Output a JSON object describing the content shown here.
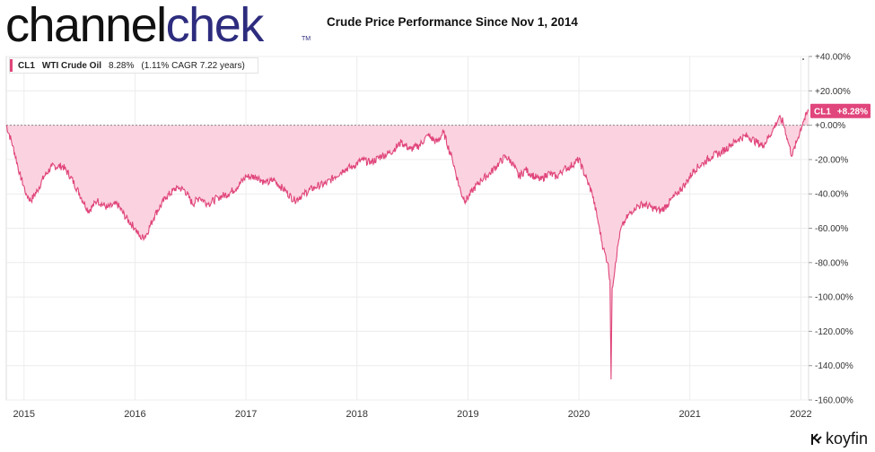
{
  "header": {
    "logo_part1": "channel",
    "logo_part2": "chek",
    "logo_tm": "TM",
    "title": "Crude Price Performance Since Nov 1, 2014"
  },
  "legend": {
    "ticker": "CL1",
    "name": "WTI Crude Oil",
    "value": "8.28%",
    "detail": "(1.11% CAGR 7.22 years)"
  },
  "last_value_badge": {
    "ticker": "CL1",
    "value": "+8.28%"
  },
  "brand": {
    "name": "koyfin"
  },
  "colors": {
    "line": "#e0457b",
    "fill": "#fbd3e0",
    "badge": "#e0457b",
    "logo_dark": "#111111",
    "logo_blue": "#2d2c7e"
  },
  "chart_data": {
    "type": "area",
    "title": "Crude Price Performance Since Nov 1, 2014",
    "ylabel": "",
    "xlabel": "",
    "ylim": [
      -160,
      40
    ],
    "xlim": [
      2014.84,
      2022.07
    ],
    "grid": true,
    "baseline": 0,
    "y_ticks": [
      "+40.00%",
      "+20.00%",
      "+0.00%",
      "-20.00%",
      "-40.00%",
      "-60.00%",
      "-80.00%",
      "-100.00%",
      "-120.00%",
      "-140.00%",
      "-160.00%"
    ],
    "x_ticks": [
      "2015",
      "2016",
      "2017",
      "2018",
      "2019",
      "2020",
      "2021",
      "2022"
    ],
    "series": [
      {
        "name": "WTI Crude Oil",
        "points": [
          [
            2014.84,
            0
          ],
          [
            2014.9,
            -12
          ],
          [
            2014.96,
            -28
          ],
          [
            2015.02,
            -40
          ],
          [
            2015.06,
            -44
          ],
          [
            2015.12,
            -38
          ],
          [
            2015.18,
            -30
          ],
          [
            2015.25,
            -24
          ],
          [
            2015.35,
            -24
          ],
          [
            2015.42,
            -30
          ],
          [
            2015.5,
            -40
          ],
          [
            2015.58,
            -50
          ],
          [
            2015.66,
            -44
          ],
          [
            2015.75,
            -48
          ],
          [
            2015.84,
            -46
          ],
          [
            2015.92,
            -54
          ],
          [
            2016.0,
            -60
          ],
          [
            2016.05,
            -66
          ],
          [
            2016.1,
            -64
          ],
          [
            2016.18,
            -52
          ],
          [
            2016.28,
            -42
          ],
          [
            2016.38,
            -36
          ],
          [
            2016.45,
            -38
          ],
          [
            2016.52,
            -46
          ],
          [
            2016.58,
            -42
          ],
          [
            2016.66,
            -46
          ],
          [
            2016.75,
            -42
          ],
          [
            2016.84,
            -40
          ],
          [
            2016.92,
            -36
          ],
          [
            2017.0,
            -30
          ],
          [
            2017.1,
            -30
          ],
          [
            2017.18,
            -34
          ],
          [
            2017.25,
            -32
          ],
          [
            2017.35,
            -38
          ],
          [
            2017.44,
            -44
          ],
          [
            2017.52,
            -40
          ],
          [
            2017.62,
            -36
          ],
          [
            2017.72,
            -34
          ],
          [
            2017.8,
            -30
          ],
          [
            2017.88,
            -26
          ],
          [
            2017.96,
            -24
          ],
          [
            2018.05,
            -20
          ],
          [
            2018.12,
            -22
          ],
          [
            2018.22,
            -18
          ],
          [
            2018.3,
            -16
          ],
          [
            2018.4,
            -10
          ],
          [
            2018.48,
            -14
          ],
          [
            2018.56,
            -12
          ],
          [
            2018.64,
            -6
          ],
          [
            2018.72,
            -10
          ],
          [
            2018.78,
            -4
          ],
          [
            2018.86,
            -20
          ],
          [
            2018.94,
            -40
          ],
          [
            2018.98,
            -44
          ],
          [
            2019.04,
            -38
          ],
          [
            2019.12,
            -32
          ],
          [
            2019.2,
            -28
          ],
          [
            2019.28,
            -22
          ],
          [
            2019.34,
            -18
          ],
          [
            2019.4,
            -22
          ],
          [
            2019.46,
            -30
          ],
          [
            2019.52,
            -26
          ],
          [
            2019.6,
            -30
          ],
          [
            2019.66,
            -32
          ],
          [
            2019.72,
            -28
          ],
          [
            2019.8,
            -30
          ],
          [
            2019.86,
            -26
          ],
          [
            2019.92,
            -24
          ],
          [
            2020.0,
            -20
          ],
          [
            2020.06,
            -30
          ],
          [
            2020.12,
            -40
          ],
          [
            2020.18,
            -58
          ],
          [
            2020.22,
            -72
          ],
          [
            2020.26,
            -80
          ],
          [
            2020.28,
            -90
          ],
          [
            2020.29,
            -148
          ],
          [
            2020.3,
            -95
          ],
          [
            2020.33,
            -80
          ],
          [
            2020.37,
            -62
          ],
          [
            2020.42,
            -55
          ],
          [
            2020.5,
            -48
          ],
          [
            2020.58,
            -46
          ],
          [
            2020.66,
            -48
          ],
          [
            2020.74,
            -50
          ],
          [
            2020.8,
            -46
          ],
          [
            2020.88,
            -40
          ],
          [
            2020.96,
            -34
          ],
          [
            2021.04,
            -26
          ],
          [
            2021.12,
            -22
          ],
          [
            2021.2,
            -18
          ],
          [
            2021.28,
            -16
          ],
          [
            2021.36,
            -12
          ],
          [
            2021.44,
            -8
          ],
          [
            2021.52,
            -6
          ],
          [
            2021.6,
            -10
          ],
          [
            2021.66,
            -12
          ],
          [
            2021.74,
            -4
          ],
          [
            2021.8,
            4
          ],
          [
            2021.84,
            2
          ],
          [
            2021.88,
            -8
          ],
          [
            2021.92,
            -18
          ],
          [
            2021.96,
            -10
          ],
          [
            2022.02,
            2
          ],
          [
            2022.07,
            8.28
          ]
        ]
      }
    ]
  }
}
